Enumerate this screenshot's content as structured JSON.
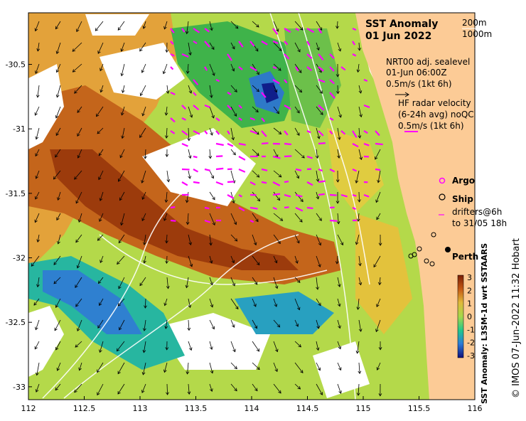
{
  "title_line1": "SST Anomaly",
  "title_line2": "01 Jun 2022",
  "isobaths": [
    "200m",
    "1000m"
  ],
  "sealevel": {
    "line1": "NRT00 adj. sealevel",
    "line2": "01-Jun 06:00Z",
    "scale": "0.5m/s (1kt 6h)"
  },
  "hf_radar": {
    "line1": "HF radar velocity",
    "line2": "(6-24h avg) noQC",
    "scale": "0.5m/s (1kt 6h)"
  },
  "legend": {
    "argo": "Argo",
    "ship": "Ship",
    "drifters_line1": "drifters@6h",
    "drifters_line2": "to 31/05 18h"
  },
  "city": "Perth",
  "colorbar": {
    "label": "SST Anomaly: L3SM-1d wrt SSTAARS",
    "ticks": [
      "3",
      "2",
      "1",
      "0",
      "-1",
      "-2",
      "-3"
    ]
  },
  "credit": "© IMOS 07-Jun-2022 11:32 Hobart",
  "x_axis": {
    "ticks": [
      "112",
      "112.5",
      "113",
      "113.5",
      "114",
      "114.5",
      "115",
      "115.5",
      "116"
    ]
  },
  "y_axis": {
    "ticks": [
      "-30.5",
      "-31",
      "-31.5",
      "-32",
      "-32.5",
      "-33"
    ]
  },
  "map_extent": {
    "lon": [
      112,
      116
    ],
    "lat": [
      -33.1,
      -30.1
    ]
  },
  "colors": {
    "land": "#fccb96",
    "hf_vectors": "#ff00ff",
    "sealevel_vectors": "#000000",
    "contours": "#ffffff"
  }
}
